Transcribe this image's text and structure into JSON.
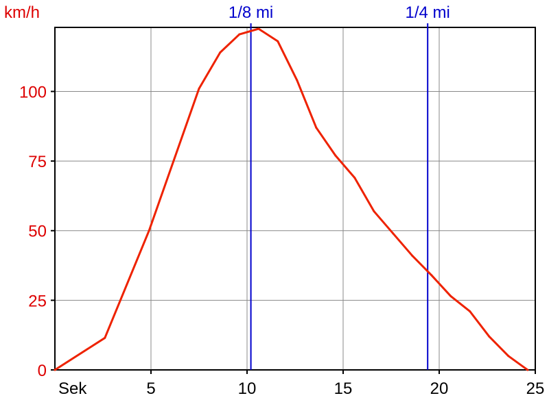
{
  "chart_data": {
    "type": "line",
    "ylabel": "km/h",
    "xlabel": "Sek",
    "xlim": [
      0,
      25
    ],
    "ylim": [
      0,
      123
    ],
    "grid": true,
    "x_ticks": [
      5,
      10,
      15,
      20,
      25
    ],
    "y_ticks": [
      0,
      25,
      50,
      75,
      100
    ],
    "x_tick_labels": [
      "5",
      "10",
      "15",
      "20",
      "25"
    ],
    "y_tick_labels": [
      "0",
      "25",
      "50",
      "75",
      "100"
    ],
    "series": [
      {
        "color": "#ee2200",
        "x": [
          0,
          2.6,
          4.9,
          7.5,
          8.6,
          9.6,
          10.6,
          11.6,
          12.6,
          13.6,
          14.6,
          15.6,
          16.6,
          17.6,
          18.6,
          19.6,
          20.6,
          21.6,
          22.6,
          23.6,
          24.6
        ],
        "y": [
          0,
          11.5,
          50,
          101,
          114,
          120.5,
          122.5,
          118,
          104,
          87,
          77,
          69,
          57,
          49,
          41,
          34,
          26.5,
          21,
          12,
          5,
          0
        ]
      }
    ],
    "markers": [
      {
        "label": "1/8 mi",
        "x": 10.2,
        "color": "#0000cc"
      },
      {
        "label": "1/4 mi",
        "x": 19.4,
        "color": "#0000cc"
      }
    ]
  }
}
